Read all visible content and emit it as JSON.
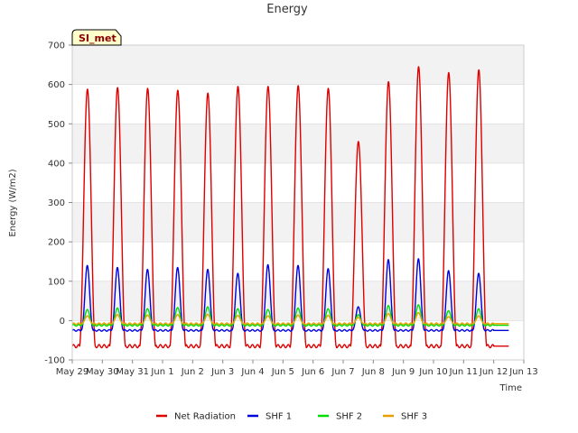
{
  "chart_data": {
    "type": "line",
    "title": "Energy",
    "xlabel": "Time",
    "ylabel": "Energy (W/m2)",
    "site_label": "SI_met",
    "xlim": [
      0,
      15
    ],
    "ylim": [
      -100,
      700
    ],
    "x_ticks": [
      {
        "value": 0,
        "label": "May 29"
      },
      {
        "value": 1,
        "label": "May 30"
      },
      {
        "value": 2,
        "label": "May 31"
      },
      {
        "value": 3,
        "label": "Jun 1"
      },
      {
        "value": 4,
        "label": "Jun 2"
      },
      {
        "value": 5,
        "label": "Jun 3"
      },
      {
        "value": 6,
        "label": "Jun 4"
      },
      {
        "value": 7,
        "label": "Jun 5"
      },
      {
        "value": 8,
        "label": "Jun 6"
      },
      {
        "value": 9,
        "label": "Jun 7"
      },
      {
        "value": 10,
        "label": "Jun 8"
      },
      {
        "value": 11,
        "label": "Jun 9"
      },
      {
        "value": 12,
        "label": "Jun 10"
      },
      {
        "value": 13,
        "label": "Jun 11"
      },
      {
        "value": 14,
        "label": "Jun 12"
      },
      {
        "value": 15,
        "label": "Jun 13"
      }
    ],
    "y_ticks": [
      -100,
      0,
      100,
      200,
      300,
      400,
      500,
      600,
      700
    ],
    "days": [
      {
        "label": "May 29",
        "x": 0.5,
        "rad_peak": 588,
        "shf1_peak": 140,
        "shf2_peak": 28,
        "shf3_peak": 12
      },
      {
        "label": "May 30",
        "x": 1.5,
        "rad_peak": 592,
        "shf1_peak": 135,
        "shf2_peak": 32,
        "shf3_peak": 15
      },
      {
        "label": "May 31",
        "x": 2.5,
        "rad_peak": 590,
        "shf1_peak": 130,
        "shf2_peak": 30,
        "shf3_peak": 14
      },
      {
        "label": "Jun 1",
        "x": 3.5,
        "rad_peak": 585,
        "shf1_peak": 135,
        "shf2_peak": 33,
        "shf3_peak": 15
      },
      {
        "label": "Jun 2",
        "x": 4.5,
        "rad_peak": 578,
        "shf1_peak": 130,
        "shf2_peak": 35,
        "shf3_peak": 16
      },
      {
        "label": "Jun 3",
        "x": 5.5,
        "rad_peak": 595,
        "shf1_peak": 120,
        "shf2_peak": 30,
        "shf3_peak": 13
      },
      {
        "label": "Jun 4",
        "x": 6.5,
        "rad_peak": 595,
        "shf1_peak": 142,
        "shf2_peak": 28,
        "shf3_peak": 12
      },
      {
        "label": "Jun 5",
        "x": 7.5,
        "rad_peak": 597,
        "shf1_peak": 140,
        "shf2_peak": 32,
        "shf3_peak": 14
      },
      {
        "label": "Jun 6",
        "x": 8.5,
        "rad_peak": 590,
        "shf1_peak": 132,
        "shf2_peak": 30,
        "shf3_peak": 13
      },
      {
        "label": "Jun 7",
        "x": 9.5,
        "rad_peak": 455,
        "shf1_peak": 35,
        "shf2_peak": 15,
        "shf3_peak": 8
      },
      {
        "label": "Jun 8",
        "x": 10.5,
        "rad_peak": 607,
        "shf1_peak": 155,
        "shf2_peak": 38,
        "shf3_peak": 18
      },
      {
        "label": "Jun 9",
        "x": 11.5,
        "rad_peak": 645,
        "shf1_peak": 157,
        "shf2_peak": 40,
        "shf3_peak": 20
      },
      {
        "label": "Jun 10",
        "x": 12.5,
        "rad_peak": 630,
        "shf1_peak": 127,
        "shf2_peak": 25,
        "shf3_peak": 10
      },
      {
        "label": "Jun 11",
        "x": 13.5,
        "rad_peak": 637,
        "shf1_peak": 120,
        "shf2_peak": 30,
        "shf3_peak": 12
      }
    ],
    "night_values": {
      "rad": -65,
      "shf1": -25,
      "shf2": -12,
      "shf3": -8
    },
    "series": [
      {
        "name": "Net Radiation",
        "key": "rad",
        "color": "#dd0000"
      },
      {
        "name": "SHF 1",
        "key": "shf1",
        "color": "#0000dd"
      },
      {
        "name": "SHF 2",
        "key": "shf2",
        "color": "#00dd00"
      },
      {
        "name": "SHF 3",
        "key": "shf3",
        "color": "#e8a000"
      }
    ],
    "grid": true,
    "legend_position": "bottom"
  }
}
